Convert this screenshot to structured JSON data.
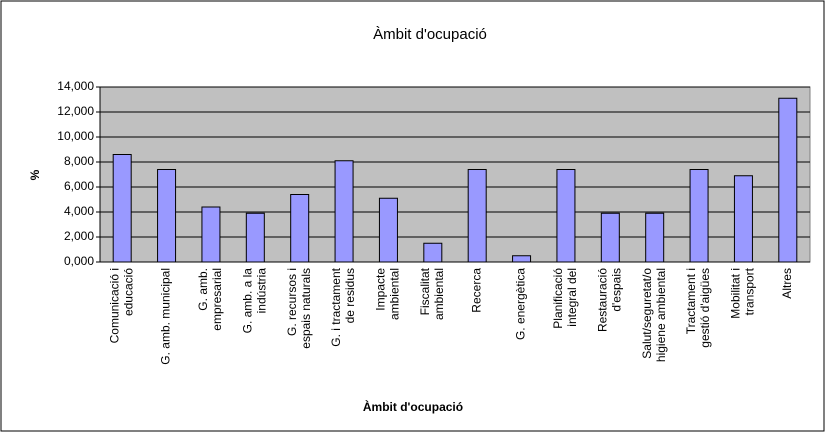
{
  "chart_data": {
    "type": "bar",
    "title": "Àmbit d'ocupació",
    "x_label": "Àmbit d'ocupació",
    "y_label": "%",
    "categories": [
      [
        "Comunicació i",
        "educació"
      ],
      [
        "G. amb. municipal"
      ],
      [
        "G. amb.",
        "empresarial"
      ],
      [
        "G. amb. a la",
        "indústria"
      ],
      [
        "G. recursos i",
        "espais naturals"
      ],
      [
        "G. i tractament",
        "de residus"
      ],
      [
        "Impacte",
        "ambiental"
      ],
      [
        "Fiscalitat",
        "ambiental"
      ],
      [
        "Recerca"
      ],
      [
        "G. energètica"
      ],
      [
        "Planificació",
        "integral del"
      ],
      [
        "Restauració",
        "d'espais"
      ],
      [
        "Salut/seguretat/o",
        "higiene ambiental"
      ],
      [
        "Tractament i",
        "gestió d'aigües"
      ],
      [
        "Mobilitat i",
        "transport"
      ],
      [
        "Altres"
      ]
    ],
    "values": [
      8.6,
      7.4,
      4.4,
      3.9,
      5.4,
      8.1,
      5.1,
      1.5,
      7.4,
      0.5,
      7.4,
      3.9,
      3.9,
      7.4,
      6.9,
      13.1
    ],
    "color": "#9999ff",
    "plot_background": "#c0c0c0",
    "ylim": [
      0,
      14
    ],
    "yticks": [
      {
        "value": 0,
        "label": "0,000"
      },
      {
        "value": 2,
        "label": "2,000"
      },
      {
        "value": 4,
        "label": "4,000"
      },
      {
        "value": 6,
        "label": "6,000"
      },
      {
        "value": 8,
        "label": "8,000"
      },
      {
        "value": 10,
        "label": "10,000"
      },
      {
        "value": 12,
        "label": "12,000"
      },
      {
        "value": 14,
        "label": "14,000"
      }
    ],
    "grid": true
  }
}
